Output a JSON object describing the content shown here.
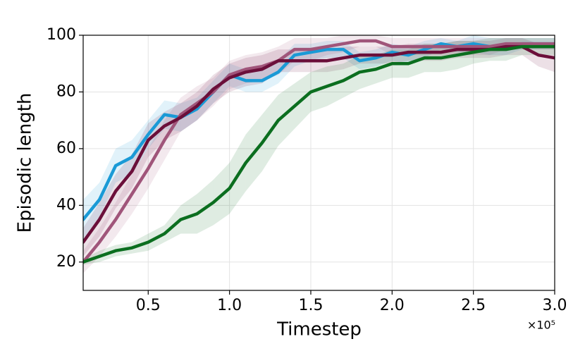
{
  "chart_data": {
    "type": "line",
    "xlabel": "Timestep",
    "ylabel": "Episodic length",
    "x_multiplier": "×10⁵",
    "x": [
      0.1,
      0.2,
      0.3,
      0.4,
      0.5,
      0.6,
      0.7,
      0.8,
      0.9,
      1.0,
      1.1,
      1.2,
      1.3,
      1.4,
      1.5,
      1.6,
      1.7,
      1.8,
      1.9,
      2.0,
      2.1,
      2.2,
      2.3,
      2.4,
      2.5,
      2.6,
      2.7,
      2.8,
      2.9,
      3.0
    ],
    "xlim": [
      0.1,
      3.0
    ],
    "xticks": [
      0.5,
      {
        "value": 1,
        "label": "1.0"
      },
      1.5,
      {
        "value": 2,
        "label": "2.0"
      },
      2.5,
      {
        "value": 3,
        "label": "3.0"
      }
    ],
    "ylim": [
      10,
      100
    ],
    "yticks": [
      20,
      40,
      60,
      80,
      100
    ],
    "grid": true,
    "series": [
      {
        "color": "#1a9ad6",
        "values": [
          35,
          42,
          54,
          57,
          65,
          72,
          71,
          74,
          80,
          86,
          84,
          84,
          87,
          93,
          94,
          95,
          95,
          91,
          92,
          94,
          93,
          95,
          97,
          96,
          97,
          96,
          96,
          97,
          97,
          97
        ],
        "lower": [
          28,
          36,
          48,
          51,
          60,
          67,
          66,
          70,
          76,
          82,
          80,
          80,
          83,
          89,
          91,
          92,
          92,
          88,
          89,
          91,
          90,
          92,
          95,
          94,
          94,
          93,
          93,
          95,
          95,
          95
        ],
        "upper": [
          42,
          48,
          60,
          63,
          70,
          77,
          76,
          78,
          84,
          90,
          88,
          88,
          91,
          97,
          97,
          98,
          98,
          94,
          95,
          97,
          96,
          98,
          99,
          98,
          100,
          99,
          99,
          99,
          99,
          99
        ]
      },
      {
        "color": "#a0557a",
        "values": [
          20,
          27,
          35,
          44,
          53,
          63,
          72,
          76,
          80,
          86,
          88,
          89,
          91,
          95,
          95,
          96,
          97,
          98,
          98,
          96,
          96,
          96,
          96,
          96,
          96,
          96,
          97,
          97,
          97,
          97
        ],
        "lower": [
          16,
          22,
          29,
          37,
          46,
          56,
          66,
          70,
          75,
          81,
          83,
          84,
          86,
          91,
          91,
          93,
          94,
          96,
          96,
          93,
          93,
          93,
          93,
          93,
          93,
          93,
          95,
          95,
          95,
          95
        ],
        "upper": [
          24,
          32,
          41,
          51,
          60,
          70,
          78,
          82,
          85,
          91,
          93,
          94,
          96,
          99,
          99,
          99,
          100,
          100,
          100,
          99,
          99,
          99,
          99,
          99,
          99,
          99,
          99,
          99,
          99,
          99
        ]
      },
      {
        "color": "#6b0f3a",
        "values": [
          27,
          35,
          45,
          52,
          63,
          68,
          71,
          75,
          81,
          85,
          87,
          88,
          91,
          91,
          91,
          91,
          92,
          93,
          93,
          93,
          94,
          94,
          94,
          95,
          95,
          95,
          96,
          96,
          93,
          92
        ],
        "lower": [
          22,
          29,
          39,
          46,
          57,
          63,
          66,
          70,
          76,
          80,
          82,
          83,
          87,
          87,
          87,
          87,
          88,
          90,
          90,
          90,
          91,
          91,
          91,
          92,
          92,
          92,
          93,
          93,
          89,
          87
        ],
        "upper": [
          32,
          41,
          51,
          58,
          69,
          73,
          76,
          80,
          86,
          90,
          92,
          93,
          95,
          95,
          95,
          95,
          96,
          96,
          96,
          96,
          97,
          97,
          97,
          98,
          98,
          98,
          99,
          99,
          97,
          97
        ]
      },
      {
        "color": "#0b6e1f",
        "values": [
          20,
          22,
          24,
          25,
          27,
          30,
          35,
          37,
          41,
          46,
          55,
          62,
          70,
          75,
          80,
          82,
          84,
          87,
          88,
          90,
          90,
          92,
          92,
          93,
          94,
          95,
          95,
          96,
          96,
          96
        ],
        "lower": [
          19,
          20,
          22,
          23,
          24,
          27,
          30,
          30,
          33,
          37,
          45,
          52,
          61,
          67,
          73,
          75,
          78,
          81,
          83,
          85,
          85,
          87,
          87,
          88,
          90,
          91,
          91,
          93,
          93,
          93
        ],
        "upper": [
          21,
          24,
          26,
          27,
          30,
          33,
          40,
          44,
          49,
          55,
          65,
          72,
          79,
          83,
          87,
          89,
          90,
          93,
          93,
          95,
          95,
          97,
          97,
          98,
          98,
          99,
          99,
          99,
          99,
          99
        ]
      }
    ]
  }
}
